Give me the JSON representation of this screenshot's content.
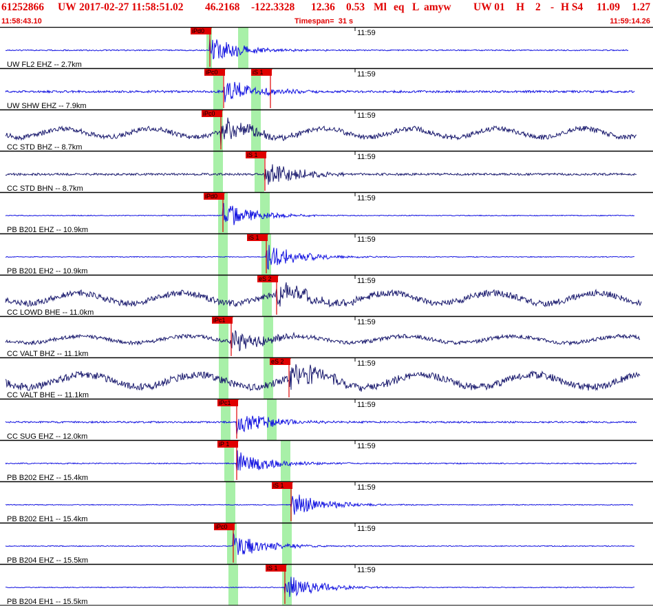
{
  "header": {
    "event_id": "61252866",
    "network": "UW",
    "origin_time": "2017-02-27 11:58:51.02",
    "latitude": "46.2168",
    "longitude": "-122.3328",
    "depth": "12.36",
    "magnitude": "0.53",
    "magnitude_type": "Ml",
    "event_type": "eq",
    "location_flag": "L",
    "analyst": "amyw",
    "solution_source": "UW 01",
    "solution_flag": "H",
    "solution_count": "2",
    "dash": "-",
    "quality_code": "H S4",
    "value_a": "11.09",
    "value_b": "1.27",
    "window_start": "11:58:43.10",
    "timespan_label": "Timespan=",
    "timespan_value": "31 s",
    "window_end": "11:59:14.26"
  },
  "colors": {
    "header_text": "#e00000",
    "trace_blue": "#1010e0",
    "trace_navy": "#1a1a6e",
    "pick_flag": "#e00000",
    "pick_flag_light": "#ffb0b0",
    "predicted_window": "#a8f0a8",
    "panel_border": "#000000"
  },
  "minute_tick_label": "11:59",
  "traces": [
    {
      "label": "UW FL2 EHZ -- 2.7km",
      "color": "blue",
      "style": "spike",
      "amp": 2,
      "onset": 305,
      "end": 913,
      "picks": [
        {
          "label": "iPd0",
          "x": 305
        }
      ],
      "green": [
        [
          300,
          308
        ],
        [
          346,
          361
        ]
      ]
    },
    {
      "label": "UW SHW EHZ -- 7.9km",
      "color": "blue",
      "style": "noisy",
      "amp": 4,
      "onset": 325,
      "end": 922,
      "picks": [
        {
          "label": "iPc0",
          "x": 325
        },
        {
          "label": "iS 1",
          "x": 393
        }
      ],
      "green": [
        [
          310,
          324
        ],
        [
          365,
          379
        ]
      ]
    },
    {
      "label": "CC STD BHZ -- 8.7km",
      "color": "navy",
      "style": "wave",
      "amp": 9,
      "onset": 321,
      "end": 925,
      "picks": [
        {
          "label": "iPc0",
          "x": 321
        }
      ],
      "green": [
        [
          310,
          324
        ],
        [
          365,
          379
        ]
      ]
    },
    {
      "label": "CC STD BHN -- 8.7km",
      "color": "navy",
      "style": "noisy",
      "amp": 4,
      "onset": 385,
      "end": 925,
      "picks": [
        {
          "label": "iS 1",
          "x": 385
        }
      ],
      "green": [
        [
          310,
          324
        ],
        [
          370,
          384
        ]
      ]
    },
    {
      "label": "PB B201 EHZ -- 10.9km",
      "color": "blue",
      "style": "flat",
      "amp": 1,
      "onset": 324,
      "end": 922,
      "picks": [
        {
          "label": "iPd0",
          "x": 324
        }
      ],
      "green": [
        [
          317,
          331
        ],
        [
          378,
          392
        ]
      ]
    },
    {
      "label": "PB B201 EH2 -- 10.9km",
      "color": "blue",
      "style": "flat",
      "amp": 1,
      "onset": 387,
      "end": 922,
      "picks": [
        {
          "label": "iS 1",
          "x": 387
        }
      ],
      "green": [
        [
          317,
          331
        ],
        [
          380,
          394
        ]
      ]
    },
    {
      "label": "CC LOWD BHE -- 11.0km",
      "color": "navy",
      "style": "wave",
      "amp": 11,
      "onset": 402,
      "end": 932,
      "picks": [
        {
          "label": "eS 2",
          "x": 402
        }
      ],
      "green": [
        [
          317,
          331
        ],
        [
          381,
          395
        ]
      ]
    },
    {
      "label": "CC VALT BHZ -- 11.1km",
      "color": "navy",
      "style": "wave",
      "amp": 7,
      "onset": 336,
      "end": 930,
      "picks": [
        {
          "label": "iPc1",
          "x": 336
        }
      ],
      "green": [
        [
          318,
          332
        ],
        [
          383,
          397
        ]
      ]
    },
    {
      "label": "CC VALT BHE -- 11.1km",
      "color": "navy",
      "style": "wave",
      "amp": 13,
      "onset": 420,
      "end": 930,
      "picks": [
        {
          "label": "eS 2",
          "x": 420
        }
      ],
      "green": [
        [
          318,
          332
        ],
        [
          383,
          397
        ]
      ]
    },
    {
      "label": "CC SUG EHZ -- 12.0km",
      "color": "blue",
      "style": "noisy",
      "amp": 3,
      "onset": 344,
      "end": 925,
      "picks": [
        {
          "label": "iPc1",
          "x": 344
        }
      ],
      "green": [
        [
          321,
          335
        ],
        [
          388,
          402
        ]
      ]
    },
    {
      "label": "PB B202 EHZ -- 15.4km",
      "color": "blue",
      "style": "noisy",
      "amp": 2,
      "onset": 344,
      "end": 925,
      "picks": [
        {
          "label": "iP 1",
          "x": 344
        }
      ],
      "green": [
        [
          326,
          340
        ],
        [
          408,
          422
        ]
      ]
    },
    {
      "label": "PB B202 EH1 -- 15.4km",
      "color": "blue",
      "style": "flat",
      "amp": 1,
      "onset": 423,
      "end": 920,
      "picks": [
        {
          "label": "iS 1",
          "x": 423
        }
      ],
      "green": [
        [
          328,
          342
        ],
        [
          410,
          424
        ]
      ]
    },
    {
      "label": "PB B204 EHZ -- 15.5km",
      "color": "blue",
      "style": "flat",
      "amp": 1,
      "onset": 339,
      "end": 922,
      "picks": [
        {
          "label": "iPc0",
          "x": 339
        }
      ],
      "green": [
        [
          330,
          344
        ],
        [
          410,
          424
        ]
      ]
    },
    {
      "label": "PB B204 EH1 -- 15.5km",
      "color": "blue",
      "style": "flat",
      "amp": 1,
      "onset": 414,
      "end": 922,
      "picks": [
        {
          "label": "iS 1",
          "x": 414
        }
      ],
      "green": [
        [
          332,
          346
        ],
        [
          410,
          424
        ]
      ]
    }
  ]
}
